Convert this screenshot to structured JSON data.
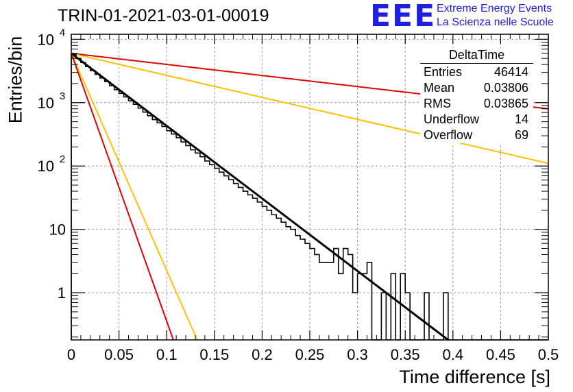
{
  "title": "TRIN-01-2021-03-01-00019",
  "logo": {
    "letters": "EEE",
    "line1": "Extreme Energy Events",
    "line2": "La Scienza nelle Scuole",
    "color": "#1f1fe0"
  },
  "stats": {
    "title": "DeltaTime",
    "rows": [
      {
        "label": "Entries",
        "value": "46414"
      },
      {
        "label": "Mean",
        "value": "0.03806"
      },
      {
        "label": "RMS",
        "value": "0.03865"
      },
      {
        "label": "Underflow",
        "value": "14"
      },
      {
        "label": "Overflow",
        "value": "69"
      }
    ]
  },
  "chart_data": {
    "type": "line",
    "xlabel": "Time difference [s]",
    "ylabel": "Entries/bin",
    "xlim": [
      0,
      0.5
    ],
    "ylim": [
      0.18,
      12000
    ],
    "yscale": "log",
    "grid": true,
    "xticks": [
      "0",
      "0.05",
      "0.1",
      "0.15",
      "0.2",
      "0.25",
      "0.3",
      "0.35",
      "0.4",
      "0.45",
      "0.5"
    ],
    "yticks": [
      {
        "value": 1,
        "label": "1"
      },
      {
        "value": 10,
        "label": "10"
      },
      {
        "value": 100,
        "label": "10",
        "exp": "2"
      },
      {
        "value": 1000,
        "label": "10",
        "exp": "3"
      },
      {
        "value": 10000,
        "label": "10",
        "exp": "4"
      }
    ],
    "histogram": {
      "bin_width": 0.005,
      "color": "#000000",
      "values": [
        5800,
        5000,
        4300,
        3700,
        3200,
        2800,
        2450,
        2150,
        1850,
        1600,
        1400,
        1230,
        1070,
        940,
        820,
        710,
        620,
        540,
        480,
        420,
        360,
        320,
        280,
        240,
        210,
        180,
        160,
        140,
        120,
        105,
        92,
        80,
        70,
        61,
        53,
        46,
        40,
        35,
        31,
        27,
        23,
        20,
        17,
        15,
        13,
        11,
        10,
        8,
        7,
        6,
        5,
        4,
        3,
        3,
        3,
        5,
        2,
        5,
        4,
        1,
        2,
        2,
        3,
        0.01,
        0.01,
        1,
        0.01,
        2,
        0.01,
        2,
        1,
        0.01,
        0.01,
        0.01,
        1,
        0.01,
        0.01,
        0.01,
        1,
        0.01,
        0.01,
        0.01,
        0.01,
        0.01,
        0.01,
        0.01,
        0.01,
        0.01,
        0.01,
        0.01,
        0.01,
        0.01,
        0.01,
        0.01,
        0.01,
        0.01,
        0.01,
        0.01,
        0.01,
        0.01
      ]
    },
    "fit_lines": [
      {
        "color": "#000000",
        "x": [
          0,
          0.395
        ],
        "y": [
          6000,
          0.18
        ]
      },
      {
        "color": "#e00000",
        "x": [
          0,
          0.5
        ],
        "y": [
          6000,
          800
        ]
      },
      {
        "color": "#ffc000",
        "x": [
          0,
          0.5
        ],
        "y": [
          6000,
          110
        ]
      },
      {
        "color": "#ffc000",
        "x": [
          0,
          0.132
        ],
        "y": [
          6000,
          0.18
        ]
      },
      {
        "color": "#e00000",
        "x": [
          0,
          0.107
        ],
        "y": [
          6000,
          0.18
        ]
      }
    ]
  }
}
